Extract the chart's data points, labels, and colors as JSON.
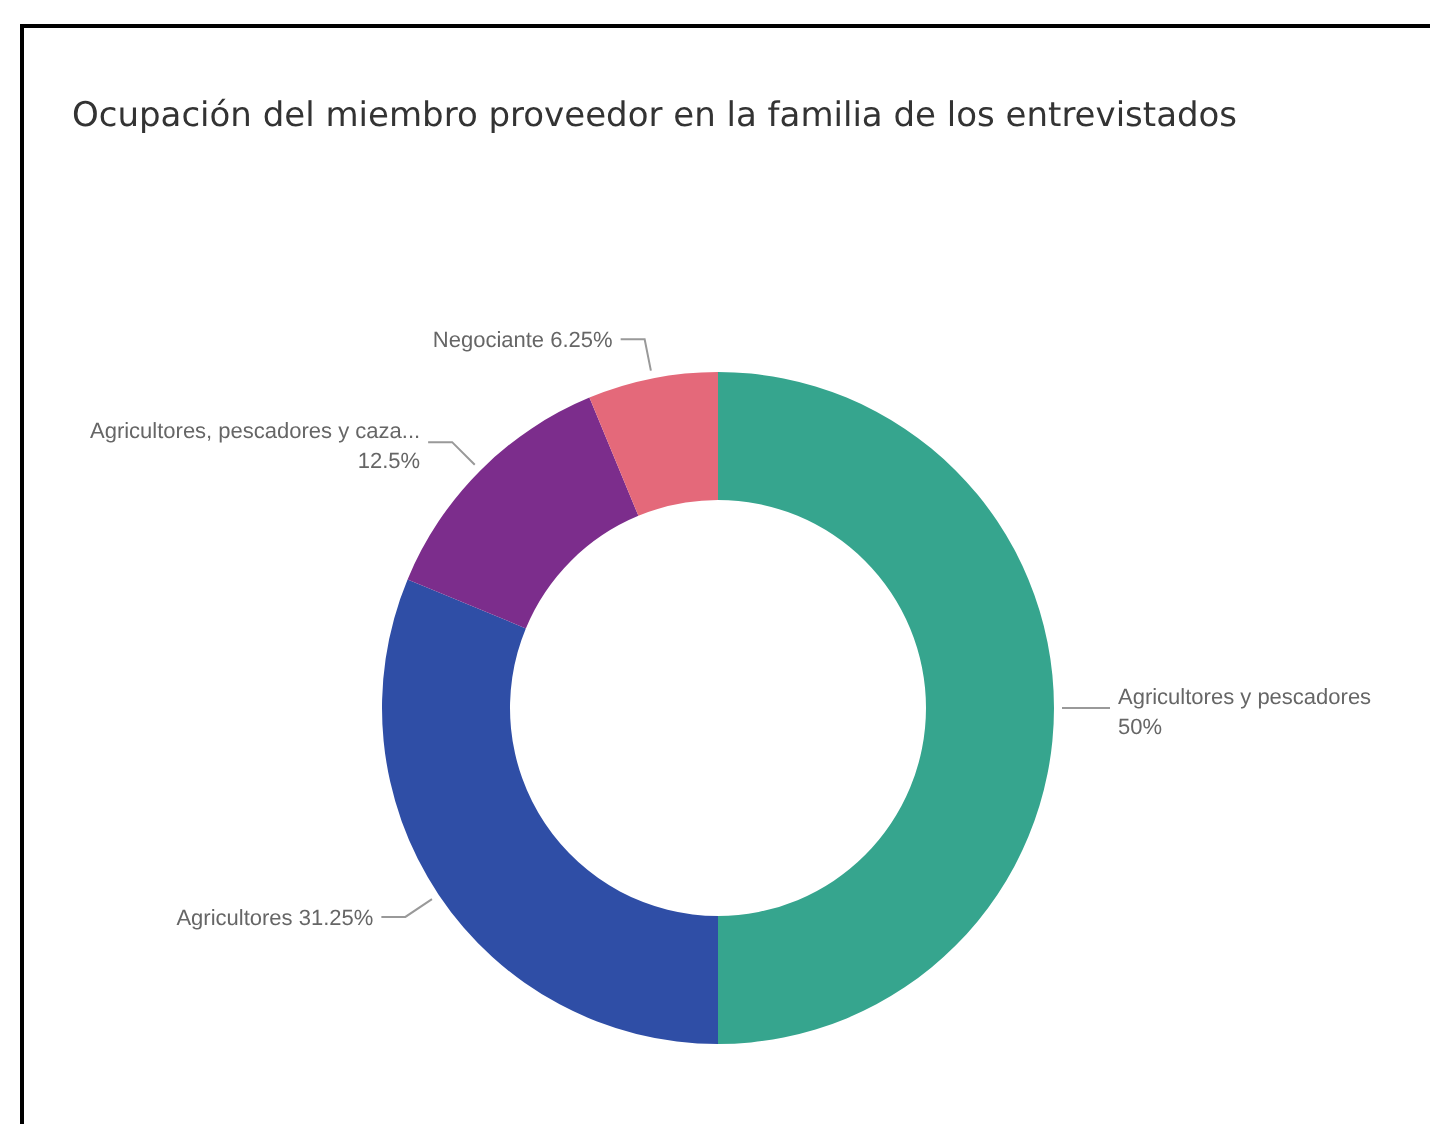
{
  "chart_data": {
    "type": "donut",
    "title": "Ocupación del miembro proveedor en la familia de los entrevistados",
    "categories": [
      "Agricultores y pescadores",
      "Agricultores",
      "Agricultores, pescadores y caza...",
      "Negociante"
    ],
    "values": [
      50,
      31.25,
      12.5,
      6.25
    ],
    "colors": [
      "#36a58e",
      "#2f4ea6",
      "#7c2d8c",
      "#e4697a"
    ],
    "value_labels": [
      "50%",
      "31.25%",
      "12.5%",
      "6.25%"
    ],
    "legend": false
  }
}
